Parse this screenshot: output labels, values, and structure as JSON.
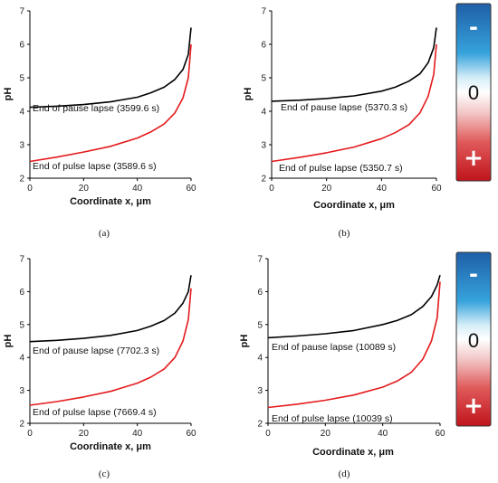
{
  "colors": {
    "pause_curve": "#000000",
    "pulse_curve": "#e41a1c",
    "axis": "#000000",
    "colorbar_top": "#1f5fa8",
    "colorbar_mid_blue": "#36a3dc",
    "colorbar_mid_white": "#ffffff",
    "colorbar_mid_red": "#e05a5a",
    "colorbar_bottom": "#c0141c"
  },
  "colorbars": [
    {
      "minus_label": "-",
      "zero_label": "0",
      "plus_label": "+"
    },
    {
      "minus_label": "-",
      "zero_label": "0",
      "plus_label": "+"
    }
  ],
  "chart_data": [
    {
      "type": "line",
      "caption": "(a)",
      "xlabel": "Coordinate x, μm",
      "ylabel": "pH",
      "xlim": [
        0,
        60
      ],
      "ylim": [
        2,
        7
      ],
      "xticks": [
        "0",
        "20",
        "40",
        "60"
      ],
      "yticks": [
        "2",
        "3",
        "4",
        "5",
        "6",
        "7"
      ],
      "series": [
        {
          "name": "End of pause lapse (3599.6 s)",
          "color": "#000000",
          "x": [
            0,
            10,
            20,
            30,
            40,
            45,
            50,
            54,
            57,
            59,
            60
          ],
          "y": [
            4.12,
            4.15,
            4.2,
            4.28,
            4.42,
            4.55,
            4.72,
            4.95,
            5.25,
            5.7,
            6.5
          ]
        },
        {
          "name": "End of pulse lapse (3589.6 s)",
          "color": "#e41a1c",
          "x": [
            0,
            10,
            20,
            30,
            40,
            45,
            50,
            54,
            57,
            59,
            60
          ],
          "y": [
            2.5,
            2.63,
            2.78,
            2.95,
            3.2,
            3.38,
            3.62,
            3.95,
            4.4,
            5.0,
            6.0
          ]
        }
      ]
    },
    {
      "type": "line",
      "caption": "(b)",
      "xlabel": "Coordinate x, μm",
      "ylabel": "pH",
      "xlim": [
        0,
        60
      ],
      "ylim": [
        2,
        7
      ],
      "xticks": [
        "0",
        "20",
        "40",
        "60"
      ],
      "yticks": [
        "2",
        "3",
        "4",
        "5",
        "6",
        "7"
      ],
      "series": [
        {
          "name": "End of pause lapse (5370.3 s)",
          "color": "#000000",
          "x": [
            0,
            10,
            20,
            30,
            40,
            45,
            50,
            54,
            57,
            59,
            60
          ],
          "y": [
            4.3,
            4.33,
            4.38,
            4.46,
            4.6,
            4.72,
            4.9,
            5.12,
            5.45,
            5.9,
            6.5
          ]
        },
        {
          "name": "End of pulse lapse (5350.7 s)",
          "color": "#e41a1c",
          "x": [
            0,
            10,
            20,
            30,
            40,
            45,
            50,
            54,
            57,
            59,
            60
          ],
          "y": [
            2.5,
            2.62,
            2.76,
            2.93,
            3.18,
            3.36,
            3.6,
            3.95,
            4.45,
            5.1,
            6.0
          ]
        }
      ]
    },
    {
      "type": "line",
      "caption": "(c)",
      "xlabel": "Coordinate x, μm",
      "ylabel": "pH",
      "xlim": [
        0,
        60
      ],
      "ylim": [
        2,
        7
      ],
      "xticks": [
        "0",
        "20",
        "40",
        "60"
      ],
      "yticks": [
        "2",
        "3",
        "4",
        "5",
        "6",
        "7"
      ],
      "series": [
        {
          "name": "End of pause lapse (7702.3 s)",
          "color": "#000000",
          "x": [
            0,
            10,
            20,
            30,
            40,
            45,
            50,
            54,
            57,
            59,
            60
          ],
          "y": [
            4.48,
            4.52,
            4.58,
            4.67,
            4.82,
            4.95,
            5.12,
            5.35,
            5.65,
            6.0,
            6.5
          ]
        },
        {
          "name": "End of pulse lapse (7669.4 s)",
          "color": "#e41a1c",
          "x": [
            0,
            10,
            20,
            30,
            40,
            45,
            50,
            54,
            57,
            59,
            60
          ],
          "y": [
            2.55,
            2.66,
            2.8,
            2.97,
            3.22,
            3.4,
            3.65,
            4.0,
            4.5,
            5.15,
            6.1
          ]
        }
      ]
    },
    {
      "type": "line",
      "caption": "(d)",
      "xlabel": "Coordinate x, μm",
      "ylabel": "pH",
      "xlim": [
        0,
        60
      ],
      "ylim": [
        2,
        7
      ],
      "xticks": [
        "0",
        "20",
        "40",
        "60"
      ],
      "yticks": [
        "2",
        "3",
        "4",
        "5",
        "6",
        "7"
      ],
      "series": [
        {
          "name": "End of pause lapse (10089 s)",
          "color": "#000000",
          "x": [
            0,
            10,
            20,
            30,
            40,
            45,
            50,
            54,
            57,
            59,
            60
          ],
          "y": [
            4.6,
            4.65,
            4.72,
            4.82,
            5.0,
            5.12,
            5.3,
            5.55,
            5.85,
            6.2,
            6.5
          ]
        },
        {
          "name": "End of pulse lapse (10039 s)",
          "color": "#e41a1c",
          "x": [
            0,
            10,
            20,
            30,
            40,
            45,
            50,
            54,
            57,
            59,
            60
          ],
          "y": [
            2.48,
            2.58,
            2.7,
            2.86,
            3.1,
            3.28,
            3.55,
            3.95,
            4.5,
            5.2,
            6.3
          ]
        }
      ]
    }
  ]
}
